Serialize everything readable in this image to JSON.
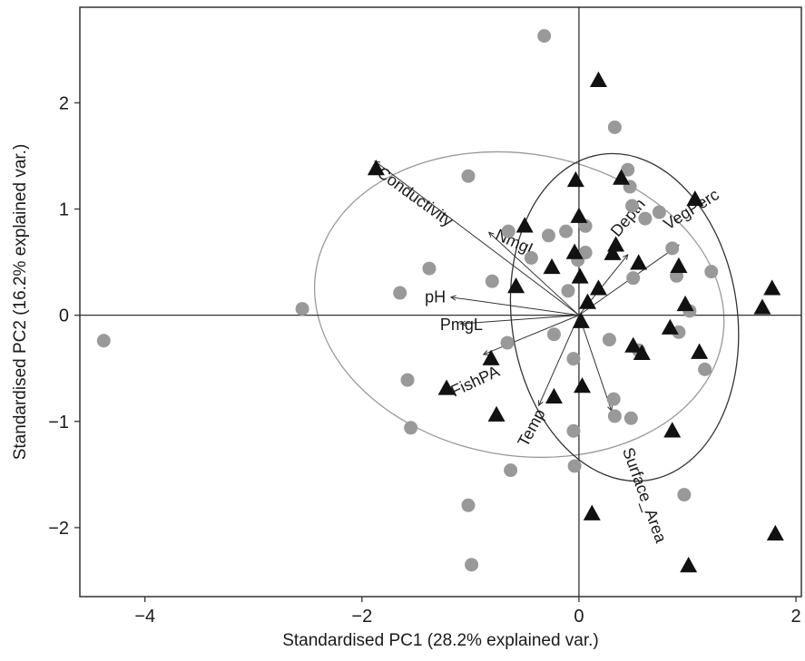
{
  "chart_data": {
    "type": "scatter",
    "subtype": "pca-biplot",
    "title": "",
    "xlabel": "Standardised PC1 (28.2% explained var.)",
    "ylabel": "Standardised PC2 (16.2% explained var.)",
    "xlim": [
      -4.6,
      2.05
    ],
    "ylim": [
      -2.65,
      2.9
    ],
    "xticks": [
      -4,
      -2,
      0,
      2
    ],
    "yticks": [
      -2,
      -1,
      0,
      1,
      2
    ],
    "reference_lines": {
      "x": 0,
      "y": 0
    },
    "grid": false,
    "legend": "none",
    "series": [
      {
        "marker": "circle",
        "color": "#999999",
        "points": [
          [
            -4.38,
            -0.24
          ],
          [
            -2.55,
            0.06
          ],
          [
            -1.65,
            0.21
          ],
          [
            -1.58,
            -0.61
          ],
          [
            -1.55,
            -1.06
          ],
          [
            -1.38,
            0.44
          ],
          [
            -1.02,
            1.31
          ],
          [
            -1.02,
            -1.79
          ],
          [
            -0.99,
            -2.35
          ],
          [
            -0.8,
            0.32
          ],
          [
            -0.65,
            0.79
          ],
          [
            -0.66,
            -0.26
          ],
          [
            -0.63,
            -1.46
          ],
          [
            -0.44,
            0.54
          ],
          [
            -0.32,
            2.63
          ],
          [
            -0.28,
            0.75
          ],
          [
            -0.23,
            -0.18
          ],
          [
            -0.12,
            0.79
          ],
          [
            -0.1,
            0.23
          ],
          [
            -0.05,
            -0.41
          ],
          [
            -0.05,
            -1.09
          ],
          [
            -0.04,
            -1.42
          ],
          [
            -0.01,
            0.52
          ],
          [
            0.06,
            0.59
          ],
          [
            0.06,
            0.84
          ],
          [
            0.28,
            -0.23
          ],
          [
            0.32,
            -0.79
          ],
          [
            0.33,
            -0.95
          ],
          [
            0.33,
            1.77
          ],
          [
            0.45,
            1.37
          ],
          [
            0.47,
            1.21
          ],
          [
            0.48,
            -0.97
          ],
          [
            0.49,
            1.03
          ],
          [
            0.61,
            0.91
          ],
          [
            0.74,
            0.97
          ],
          [
            0.86,
            0.63
          ],
          [
            0.9,
            0.37
          ],
          [
            0.92,
            -0.16
          ],
          [
            0.97,
            -1.69
          ],
          [
            1.02,
            0.04
          ],
          [
            1.16,
            -0.51
          ],
          [
            1.22,
            0.41
          ],
          [
            0.55,
            -0.33
          ],
          [
            0.5,
            0.35
          ]
        ]
      },
      {
        "marker": "triangle",
        "color": "#111111",
        "points": [
          [
            -1.87,
            1.38
          ],
          [
            -0.81,
            -0.41
          ],
          [
            -0.76,
            -0.94
          ],
          [
            -1.22,
            -0.69
          ],
          [
            -0.58,
            0.27
          ],
          [
            -0.5,
            0.84
          ],
          [
            -0.25,
            0.45
          ],
          [
            -0.23,
            -0.77
          ],
          [
            -0.04,
            0.59
          ],
          [
            -0.03,
            1.27
          ],
          [
            0.0,
            0.93
          ],
          [
            0.01,
            0.36
          ],
          [
            0.02,
            -0.06
          ],
          [
            0.03,
            -0.67
          ],
          [
            0.08,
            0.12
          ],
          [
            0.12,
            -1.87
          ],
          [
            0.18,
            2.21
          ],
          [
            0.18,
            0.25
          ],
          [
            0.31,
            0.58
          ],
          [
            0.34,
            0.66
          ],
          [
            0.39,
            1.29
          ],
          [
            0.5,
            -0.29
          ],
          [
            0.55,
            0.49
          ],
          [
            0.58,
            -0.36
          ],
          [
            0.84,
            -0.12
          ],
          [
            0.86,
            -1.09
          ],
          [
            0.92,
            0.46
          ],
          [
            0.98,
            0.1
          ],
          [
            1.01,
            -2.36
          ],
          [
            1.07,
            1.09
          ],
          [
            1.11,
            -0.35
          ],
          [
            1.69,
            0.07
          ],
          [
            1.78,
            0.25
          ],
          [
            1.81,
            -2.06
          ]
        ]
      }
    ],
    "loadings": [
      {
        "label": "Conductivity",
        "x": 0.0,
        "y": 0.0,
        "to": [
          -1.88,
          1.45
        ],
        "angle": 36
      },
      {
        "label": "NmgL",
        "x": 0.0,
        "y": 0.0,
        "to": [
          -0.83,
          0.78
        ],
        "angle": 24
      },
      {
        "label": "pH",
        "x": 0.0,
        "y": 0.0,
        "to": [
          -1.18,
          0.17
        ],
        "angle": 0
      },
      {
        "label": "PmgL",
        "x": 0.0,
        "y": 0.0,
        "to": [
          -1.09,
          -0.08
        ],
        "angle": 0
      },
      {
        "label": "FishPA",
        "x": 0.0,
        "y": 0.0,
        "to": [
          -0.88,
          -0.37
        ],
        "angle": -25
      },
      {
        "label": "Temp",
        "x": 0.0,
        "y": 0.0,
        "to": [
          -0.37,
          -0.85
        ],
        "angle": -62
      },
      {
        "label": "Surface_Area",
        "x": 0.0,
        "y": 0.0,
        "to": [
          0.3,
          -0.9
        ],
        "angle": 70
      },
      {
        "label": "Depth",
        "x": 0.0,
        "y": 0.0,
        "to": [
          0.45,
          0.57
        ],
        "angle": -50
      },
      {
        "label": "VegPerc",
        "x": 0.0,
        "y": 0.0,
        "to": [
          0.92,
          0.66
        ],
        "angle": -32
      }
    ],
    "ellipses": [
      {
        "group": "circles",
        "color": "#999999",
        "cx": -0.55,
        "cy": 0.1,
        "rx": 1.9,
        "ry": 1.42,
        "rotation": 10
      },
      {
        "group": "triangles",
        "color": "#333333",
        "cx": 0.42,
        "cy": -0.02,
        "rx": 1.04,
        "ry": 1.55,
        "rotation": -8
      }
    ]
  }
}
